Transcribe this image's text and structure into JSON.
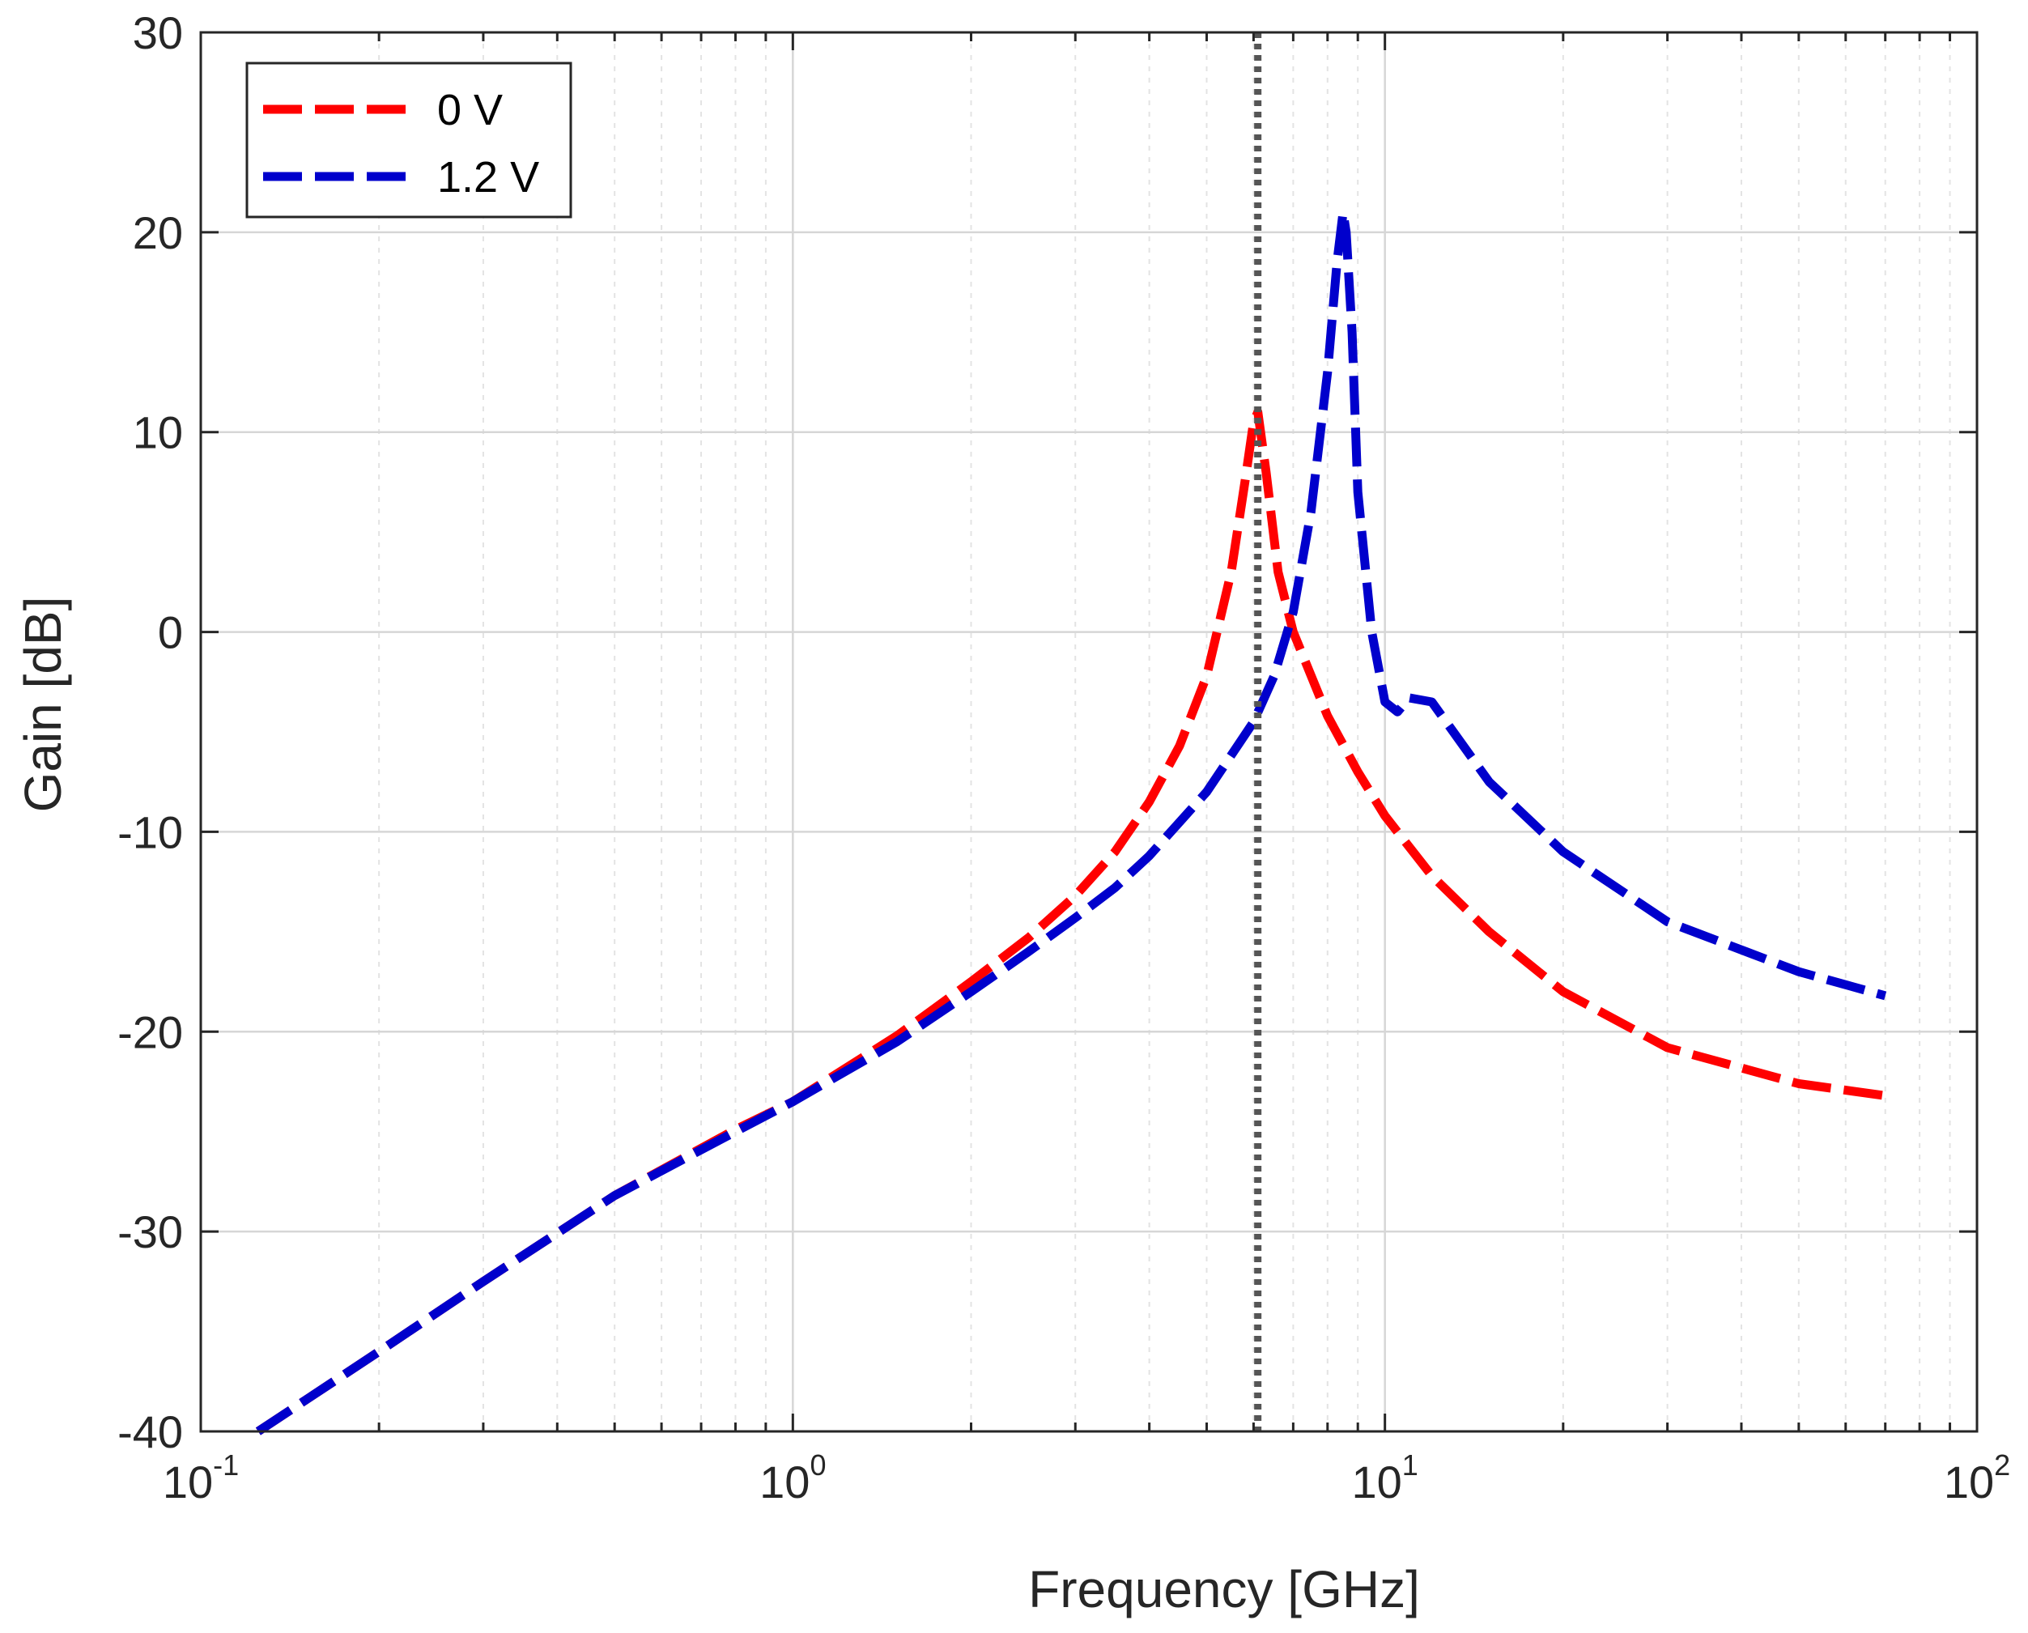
{
  "chart_data": {
    "type": "line",
    "title": "",
    "xlabel": "Frequency [GHz]",
    "ylabel": "Gain [dB]",
    "xscale": "log",
    "xlim": [
      0.1,
      100
    ],
    "ylim": [
      -40,
      30
    ],
    "grid": true,
    "legend_position": "top-left",
    "x_ticks": [
      {
        "base": "10",
        "exp": "-1",
        "value": 0.1
      },
      {
        "base": "10",
        "exp": "0",
        "value": 1
      },
      {
        "base": "10",
        "exp": "1",
        "value": 10
      },
      {
        "base": "10",
        "exp": "2",
        "value": 100
      }
    ],
    "y_ticks": [
      {
        "label": "30",
        "value": 30
      },
      {
        "label": "20",
        "value": 20
      },
      {
        "label": "10",
        "value": 10
      },
      {
        "label": "0",
        "value": 0
      },
      {
        "label": "-10",
        "value": -10
      },
      {
        "label": "-20",
        "value": -20
      },
      {
        "label": "-30",
        "value": -30
      },
      {
        "label": "-40",
        "value": -40
      }
    ],
    "reference_line": {
      "x": 6.1,
      "color": "#555555",
      "style": "dotted"
    },
    "series": [
      {
        "name": "0 V",
        "color": "#ff0000",
        "style": "dashed",
        "x": [
          0.125,
          0.2,
          0.3,
          0.5,
          0.8,
          1.0,
          1.5,
          2.0,
          2.5,
          3.0,
          3.5,
          4.0,
          4.5,
          5.0,
          5.5,
          5.8,
          6.0,
          6.1,
          6.3,
          6.6,
          7.0,
          8.0,
          9.0,
          10.0,
          12.0,
          15.0,
          20.0,
          30.0,
          50.0,
          70.0
        ],
        "y": [
          -40.0,
          -36.0,
          -32.5,
          -28.2,
          -24.9,
          -23.5,
          -20.2,
          -17.5,
          -15.3,
          -13.2,
          -11.0,
          -8.5,
          -5.7,
          -2.2,
          3.0,
          7.5,
          10.5,
          11.0,
          8.0,
          3.0,
          0.0,
          -4.2,
          -7.0,
          -9.2,
          -12.2,
          -15.0,
          -18.0,
          -20.8,
          -22.6,
          -23.2
        ]
      },
      {
        "name": "1.2 V",
        "color": "#0000cc",
        "style": "dashed",
        "x": [
          0.125,
          0.2,
          0.3,
          0.5,
          0.8,
          1.0,
          1.5,
          2.0,
          2.5,
          3.0,
          3.5,
          4.0,
          5.0,
          6.0,
          6.5,
          7.0,
          7.5,
          8.0,
          8.3,
          8.5,
          8.6,
          8.8,
          9.0,
          9.5,
          10.0,
          10.5,
          11.0,
          12.0,
          15.0,
          20.0,
          30.0,
          50.0,
          70.0
        ],
        "y": [
          -40.0,
          -36.0,
          -32.5,
          -28.2,
          -25.0,
          -23.5,
          -20.5,
          -18.0,
          -16.0,
          -14.3,
          -12.8,
          -11.2,
          -8.0,
          -4.5,
          -2.2,
          1.0,
          6.0,
          13.0,
          18.5,
          21.0,
          20.0,
          15.0,
          7.0,
          0.0,
          -3.5,
          -4.0,
          -3.3,
          -3.5,
          -7.5,
          -11.0,
          -14.5,
          -17.0,
          -18.2
        ]
      }
    ]
  }
}
